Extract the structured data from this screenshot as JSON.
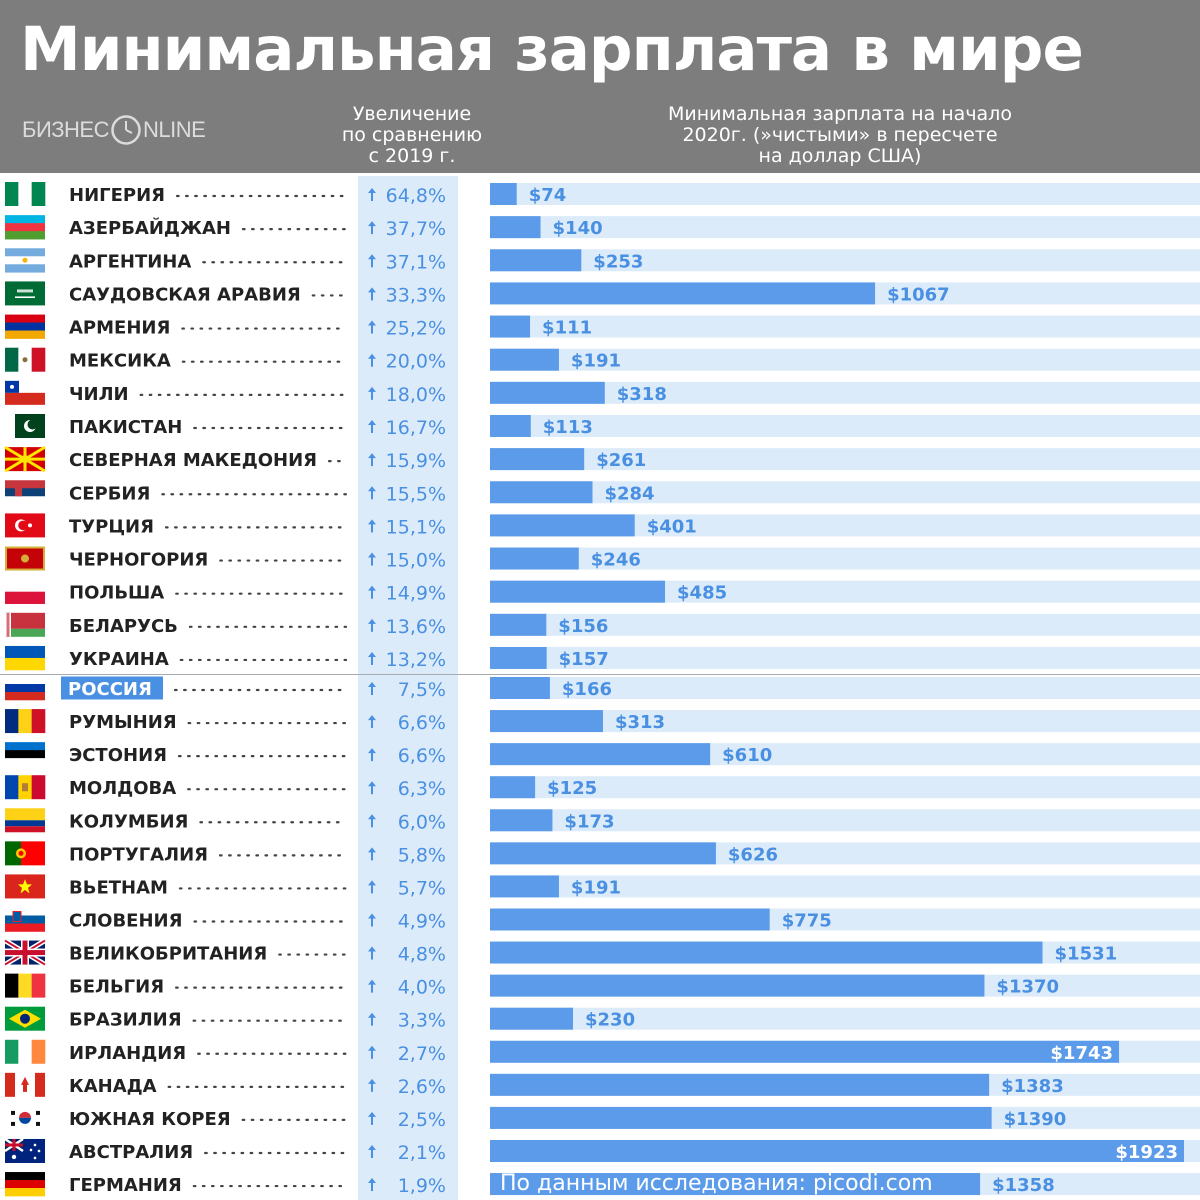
{
  "header": {
    "title": "Минимальная зарплата в мире",
    "logo_left": "БИЗНЕС",
    "logo_right": "NLINE",
    "growth_heading": [
      "Увеличение",
      "по сравнению",
      "с 2019 г."
    ],
    "wage_heading": [
      "Минимальная зарплата на начало",
      "2020г. (»чистыми» в пересчете",
      "на доллар США)"
    ]
  },
  "source": "По данным исследования:  picodi.com",
  "colors": {
    "header_bg": "#7d7d7d",
    "bar": "#5b9be9",
    "bar_track": "#dcebf9",
    "value_label": "#4a90e2",
    "growth_text": "#4a90e2",
    "growth_col": "#dcebf9",
    "country_text": "#222222",
    "highlight": "#4a90e2"
  },
  "chart_data": {
    "type": "bar",
    "orientation": "horizontal",
    "highlight": "РОССИЯ",
    "categories": [
      "НИГЕРИЯ",
      "АЗЕРБАЙДЖАН",
      "АРГЕНТИНА",
      "САУДОВСКАЯ АРАВИЯ",
      "АРМЕНИЯ",
      "МЕКСИКА",
      "ЧИЛИ",
      "ПАКИСТАН",
      "СЕВЕРНАЯ МАКЕДОНИЯ",
      "СЕРБИЯ",
      "ТУРЦИЯ",
      "ЧЕРНОГОРИЯ",
      "ПОЛЬША",
      "БЕЛАРУСЬ",
      "УКРАИНА",
      "РОССИЯ",
      "РУМЫНИЯ",
      "ЭСТОНИЯ",
      "МОЛДОВА",
      "КОЛУМБИЯ",
      "ПОРТУГАЛИЯ",
      "ВЬЕТНАМ",
      "СЛОВЕНИЯ",
      "ВЕЛИКОБРИТАНИЯ",
      "БЕЛЬГИЯ",
      "БРАЗИЛИЯ",
      "ИРЛАНДИЯ",
      "КАНАДА",
      "ЮЖНАЯ КОРЕЯ",
      "АВСТРАЛИЯ",
      "ГЕРМАНИЯ"
    ],
    "growth_labels": [
      "64,8%",
      "37,7%",
      "37,1%",
      "33,3%",
      "25,2%",
      "20,0%",
      "18,0%",
      "16,7%",
      "15,9%",
      "15,5%",
      "15,1%",
      "15,0%",
      "14,9%",
      "13,6%",
      "13,2%",
      "7,5%",
      "6,6%",
      "6,6%",
      "6,3%",
      "6,0%",
      "5,8%",
      "5,7%",
      "4,9%",
      "4,8%",
      "4,0%",
      "3,3%",
      "2,7%",
      "2,6%",
      "2,5%",
      "2,1%",
      "1,9%"
    ],
    "values": [
      74,
      140,
      253,
      1067,
      111,
      191,
      318,
      113,
      261,
      284,
      401,
      246,
      485,
      156,
      157,
      166,
      313,
      610,
      125,
      173,
      626,
      191,
      775,
      1531,
      1370,
      230,
      1743,
      1383,
      1390,
      1923,
      1358
    ],
    "value_labels": [
      "$74",
      "$140",
      "$253",
      "$1067",
      "$111",
      "$191",
      "$318",
      "$113",
      "$261",
      "$284",
      "$401",
      "$246",
      "$485",
      "$156",
      "$157",
      "$166",
      "$313",
      "$610",
      "$125",
      "$173",
      "$626",
      "$191",
      "$775",
      "$1531",
      "$1370",
      "$230",
      "$1743",
      "$1383",
      "$1390",
      "$1923",
      "$1358"
    ],
    "xlim": [
      0,
      1923
    ],
    "flags": [
      "nigeria",
      "azerbaijan",
      "argentina",
      "saudi-arabia",
      "armenia",
      "mexico",
      "chile",
      "pakistan",
      "north-macedonia",
      "serbia",
      "turkey",
      "montenegro",
      "poland",
      "belarus",
      "ukraine",
      "russia",
      "romania",
      "estonia",
      "moldova",
      "colombia",
      "portugal",
      "vietnam",
      "slovenia",
      "united-kingdom",
      "belgium",
      "brazil",
      "ireland",
      "canada",
      "south-korea",
      "australia",
      "germany"
    ]
  }
}
